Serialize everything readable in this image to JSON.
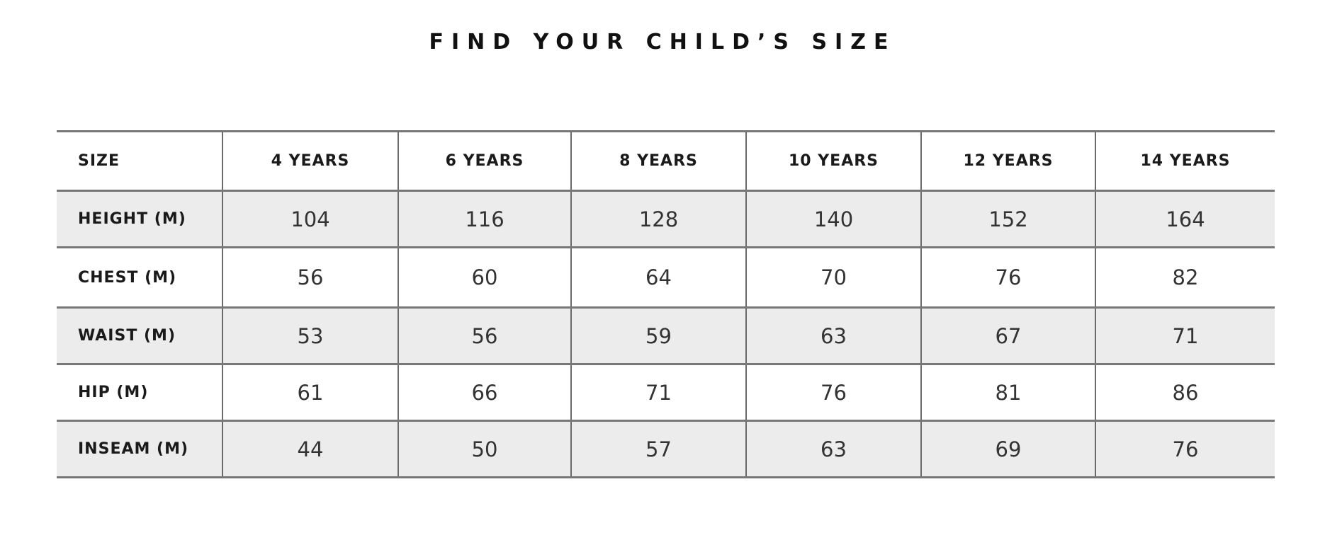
{
  "title": "FIND YOUR CHILD’S SIZE",
  "table": {
    "headers": [
      "SIZE",
      "4 YEARS",
      "6 YEARS",
      "8 YEARS",
      "10 YEARS",
      "12 YEARS",
      "14 YEARS"
    ],
    "rows": [
      {
        "label": "HEIGHT (M)",
        "values": [
          "104",
          "116",
          "128",
          "140",
          "152",
          "164"
        ]
      },
      {
        "label": "CHEST (M)",
        "values": [
          "56",
          "60",
          "64",
          "70",
          "76",
          "82"
        ]
      },
      {
        "label": "WAIST (M)",
        "values": [
          "53",
          "56",
          "59",
          "63",
          "67",
          "71"
        ]
      },
      {
        "label": "HIP (M)",
        "values": [
          "61",
          "66",
          "71",
          "76",
          "81",
          "86"
        ]
      },
      {
        "label": "INSEAM (M)",
        "values": [
          "44",
          "50",
          "57",
          "63",
          "69",
          "76"
        ]
      }
    ]
  },
  "colors": {
    "shaded_row": "#ececec",
    "border": "#777777"
  }
}
